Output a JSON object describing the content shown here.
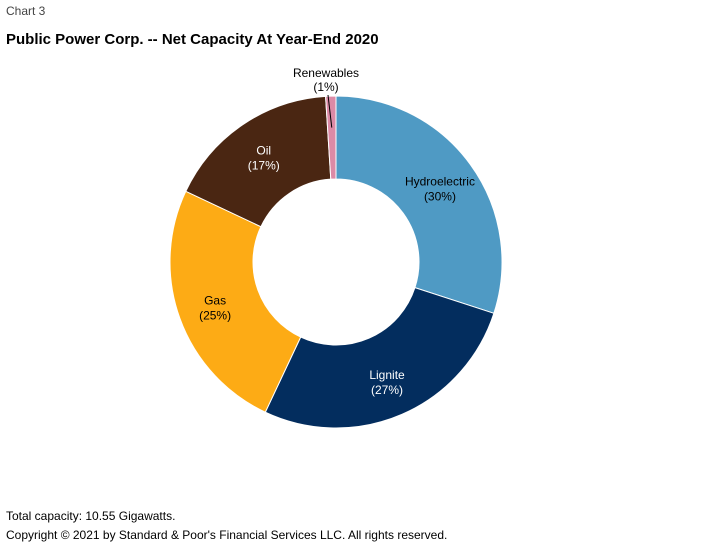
{
  "header": {
    "chart_number": "Chart 3"
  },
  "chart_data": {
    "type": "pie",
    "donut": true,
    "title": "Public Power Corp. -- Net Capacity At Year-End 2020",
    "categories": [
      "Hydroelectric",
      "Lignite",
      "Gas",
      "Oil",
      "Renewables"
    ],
    "values": [
      30,
      27,
      25,
      17,
      1
    ],
    "value_labels": [
      "(30%)",
      "(27%)",
      "(25%)",
      "(17%)",
      "(1%)"
    ],
    "unit": "%",
    "colors": [
      "#4f9ac4",
      "#032d5e",
      "#fdab15",
      "#4a2612",
      "#dc8aa6"
    ],
    "label_colors": [
      "#000000",
      "#ffffff",
      "#000000",
      "#ffffff",
      "#000000"
    ]
  },
  "footer": {
    "note": "Total capacity: 10.55 Gigawatts.",
    "copyright": "Copyright © 2021 by Standard & Poor's Financial Services LLC. All rights reserved."
  }
}
